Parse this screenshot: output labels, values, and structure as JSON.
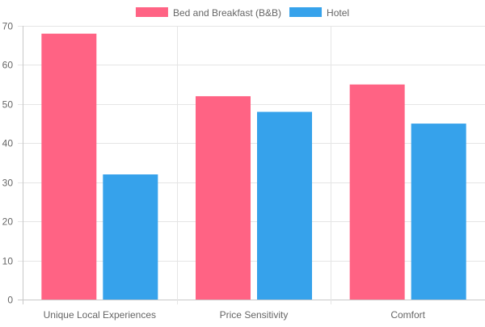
{
  "chart_data": {
    "type": "bar",
    "categories": [
      "Unique Local Experiences",
      "Price Sensitivity",
      "Comfort"
    ],
    "series": [
      {
        "name": "Bed and Breakfast (B&B)",
        "values": [
          68,
          52,
          55
        ],
        "color": "#ff6384"
      },
      {
        "name": "Hotel",
        "values": [
          32,
          48,
          45
        ],
        "color": "#36a2eb"
      }
    ],
    "ylim": [
      0,
      70
    ],
    "y_ticks": [
      0,
      10,
      20,
      30,
      40,
      50,
      60,
      70
    ],
    "grid": true,
    "legend_position": "top-center",
    "colors": {
      "grid": "#e5e5e5",
      "axis": "#c8c8c8",
      "tick_text": "#666666"
    }
  }
}
